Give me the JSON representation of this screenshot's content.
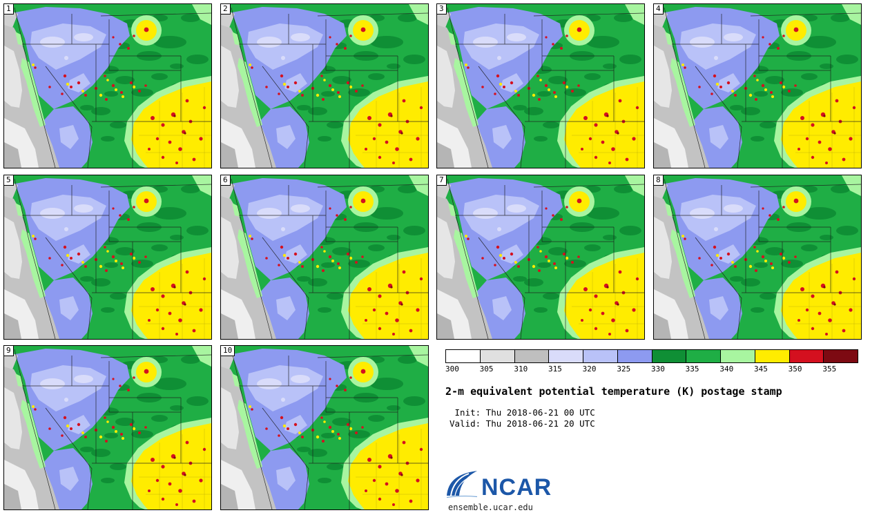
{
  "panels": [
    {
      "label": "1"
    },
    {
      "label": "2"
    },
    {
      "label": "3"
    },
    {
      "label": "4"
    },
    {
      "label": "5"
    },
    {
      "label": "6"
    },
    {
      "label": "7"
    },
    {
      "label": "8"
    },
    {
      "label": "9"
    },
    {
      "label": "10"
    }
  ],
  "legend": {
    "title": "2-m equivalent potential temperature (K) postage stamp",
    "init_line": " Init: Thu 2018-06-21 00 UTC",
    "valid_line": "Valid: Thu 2018-06-21 20 UTC",
    "logo_text": "NCAR",
    "site": "ensemble.ucar.edu"
  },
  "chart_data": {
    "type": "heatmap",
    "subtype": "ensemble-postage-stamp-maps",
    "title": "2-m equivalent potential temperature (K) postage stamp",
    "panel_labels": [
      "1",
      "2",
      "3",
      "4",
      "5",
      "6",
      "7",
      "8",
      "9",
      "10"
    ],
    "init": "Thu 2018-06-21 00 UTC",
    "valid": "Thu 2018-06-21 20 UTC",
    "colorbar": {
      "orientation": "horizontal",
      "ticks": [
        "300",
        "305",
        "310",
        "315",
        "320",
        "325",
        "330",
        "335",
        "340",
        "345",
        "350",
        "355"
      ],
      "colors": [
        "#ffffff",
        "#e0e0e0",
        "#bfbfbf",
        "#d9dcfa",
        "#b9c2f8",
        "#8d9af0",
        "#0f8f35",
        "#1fae45",
        "#a8f5a0",
        "#ffec00",
        "#d4101f",
        "#7d0a12"
      ]
    }
  }
}
